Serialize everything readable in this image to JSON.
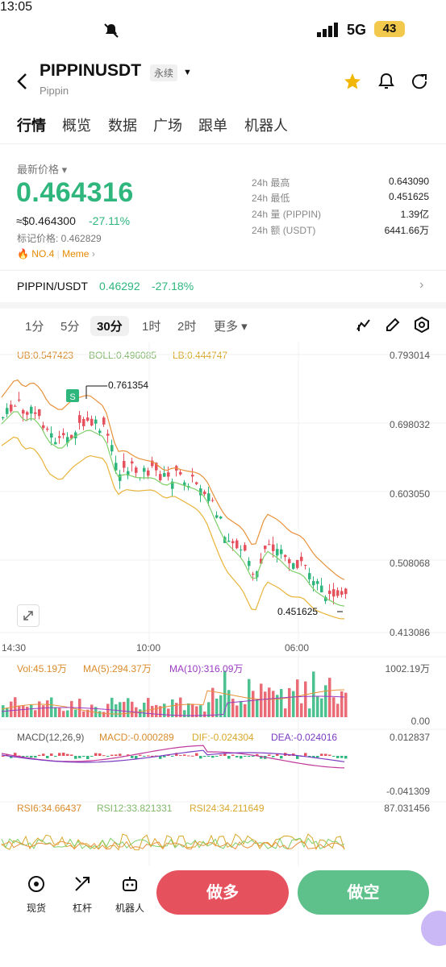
{
  "status_bar": {
    "time": "13:05",
    "network": "5G",
    "battery": "43"
  },
  "header": {
    "pair": "PIPPINUSDT",
    "contract_type": "永续",
    "name": "Pippin"
  },
  "tabs": [
    "行情",
    "概览",
    "数据",
    "广场",
    "跟单",
    "机器人"
  ],
  "price": {
    "label": "最新价格",
    "last": "0.464316",
    "usd": "≈$0.464300",
    "change": "-27.11%",
    "mark": "标记价格: 0.462829",
    "rank": "NO.4",
    "category": "Meme"
  },
  "stats": [
    {
      "label": "24h  最高",
      "value": "0.643090"
    },
    {
      "label": "24h  最低",
      "value": "0.451625"
    },
    {
      "label": "24h  量 (PIPPIN)",
      "value": "1.39亿"
    },
    {
      "label": "24h  额 (USDT)",
      "value": "6441.66万"
    }
  ],
  "spot": {
    "pair": "PIPPIN/USDT",
    "price": "0.46292",
    "change": "-27.18%"
  },
  "intervals": [
    "1分",
    "5分",
    "30分",
    "1时",
    "2时",
    "更多"
  ],
  "boll": {
    "ub": "UB:0.547423",
    "boll": "BOLL:0.496085",
    "lb": "LB:0.444747"
  },
  "chart_data": {
    "type": "candlestick",
    "y_ticks": [
      "0.793014",
      "0.698032",
      "0.603050",
      "0.508068",
      "0.413086"
    ],
    "x_ticks": [
      "14:30",
      "10:00",
      "06:00"
    ],
    "high_label": "0.761354",
    "low_label": "0.451625",
    "volume": {
      "vol": "Vol:45.19万",
      "ma5": "MA(5):294.37万",
      "ma10": "MA(10):316.09万",
      "max": "1002.19万",
      "min": "0.00"
    },
    "macd": {
      "params": "MACD(12,26,9)",
      "macd": "MACD:-0.000289",
      "dif": "DIF:-0.024304",
      "dea": "DEA:-0.024016",
      "max": "0.012837",
      "min": "-0.041309"
    },
    "rsi": {
      "rsi6": "RSI6:34.66437",
      "rsi12": "RSI12:33.821331",
      "rsi24": "RSI24:34.211649",
      "max": "87.031456"
    }
  },
  "bottom": {
    "spot": "现货",
    "lever": "杠杆",
    "bot": "机器人",
    "long": "做多",
    "short": "做空"
  }
}
